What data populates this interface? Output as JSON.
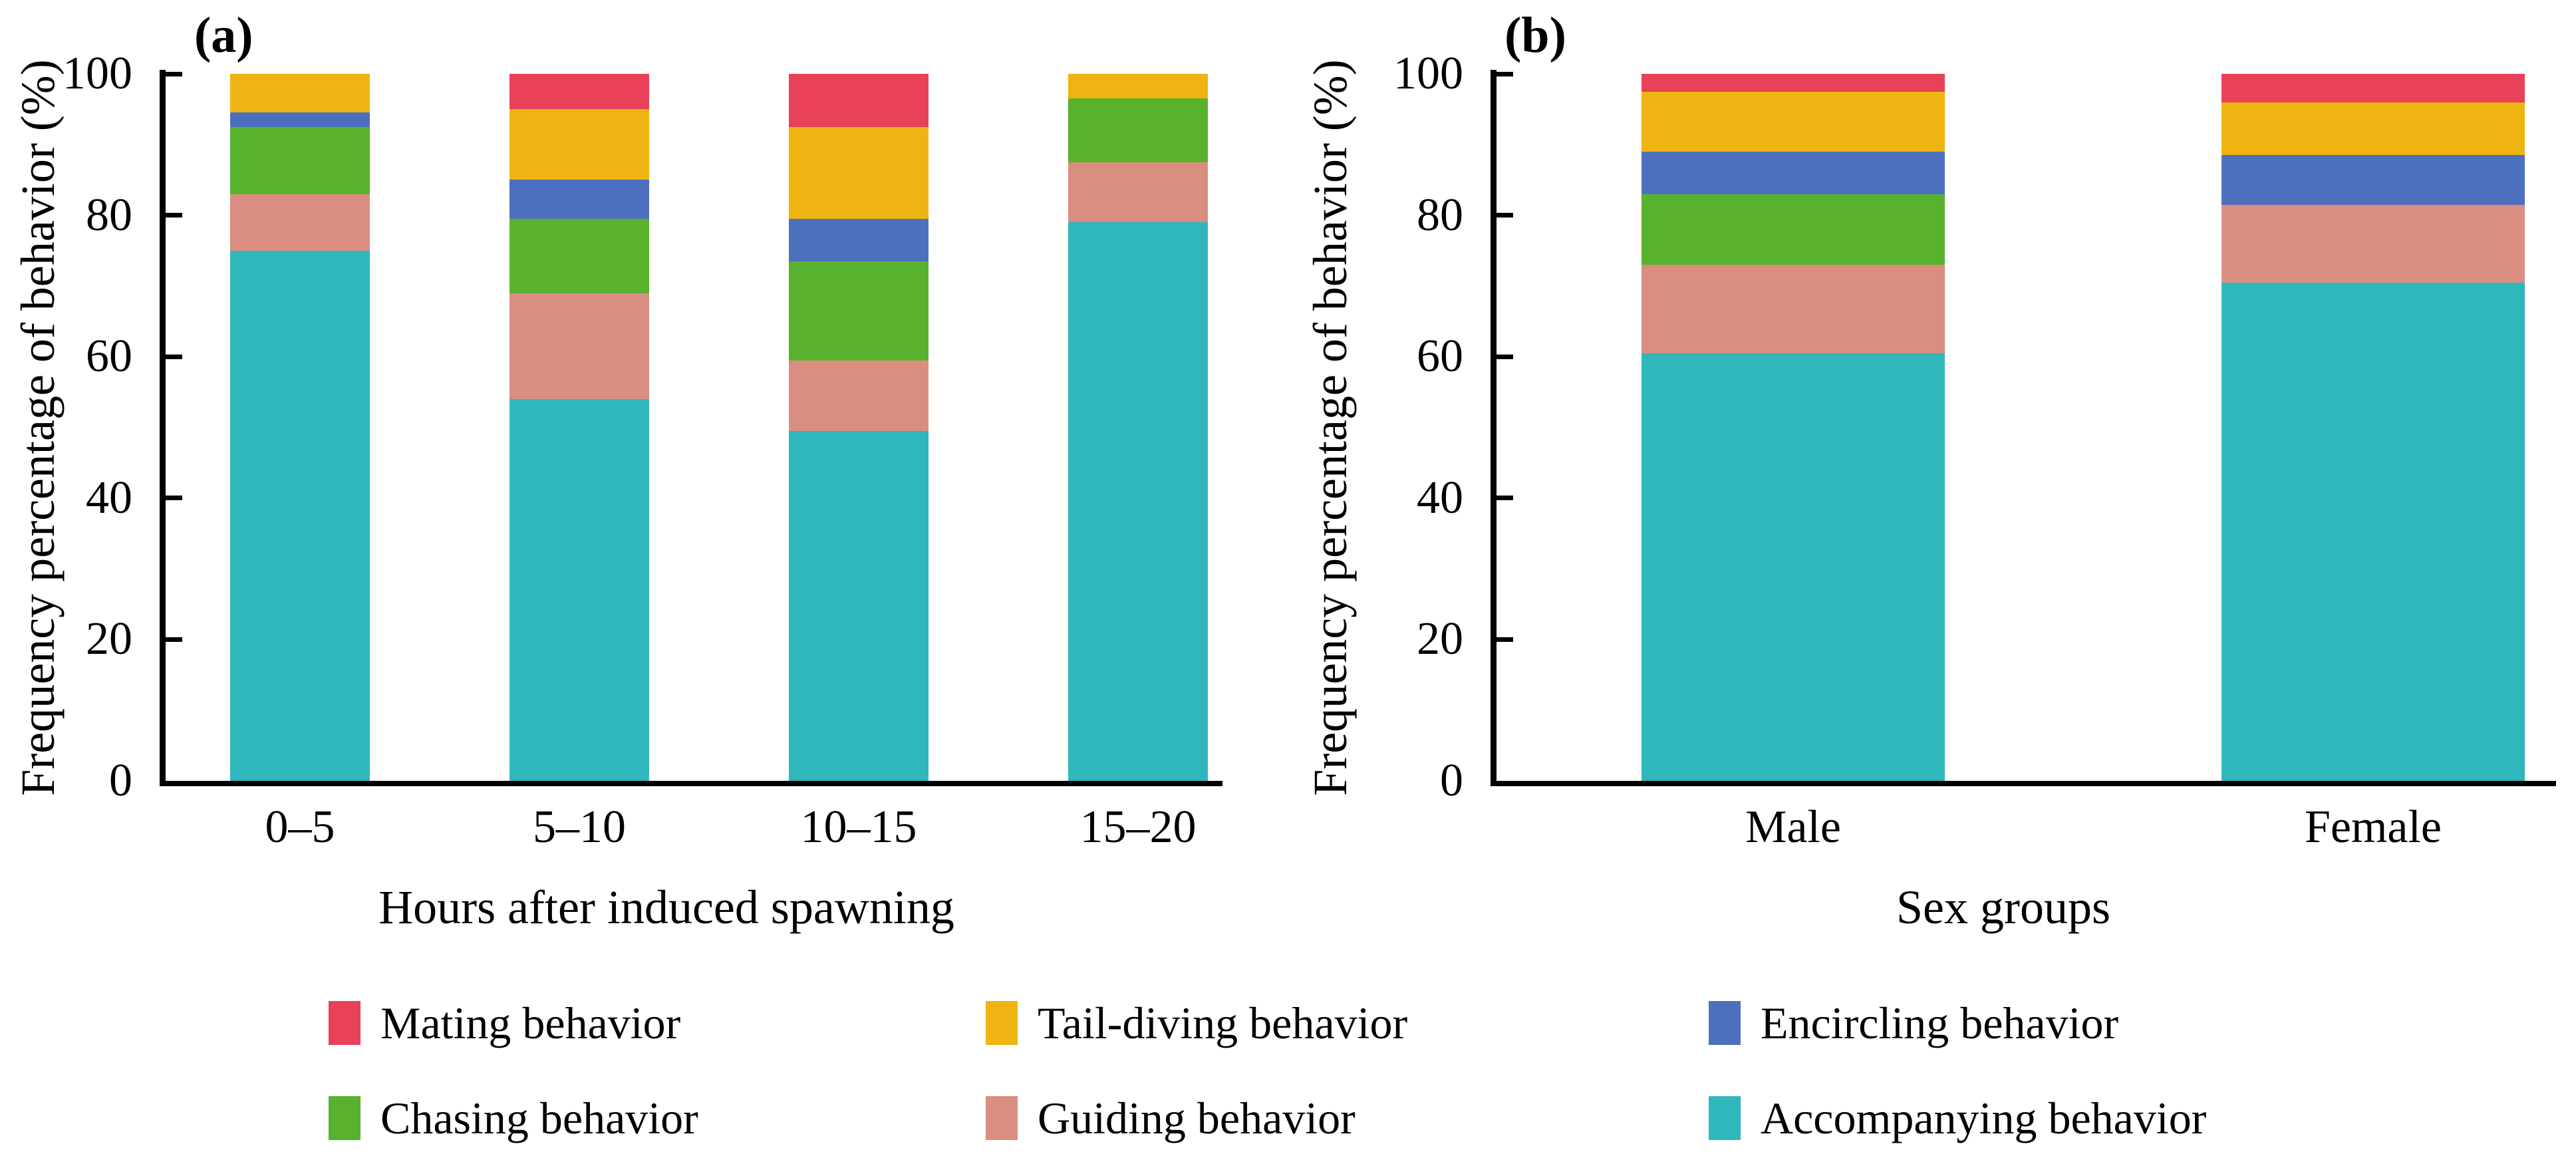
{
  "figure": {
    "background": "#ffffff",
    "text_color": "#000000"
  },
  "colors": {
    "mating": "#E84159",
    "tail_diving": "#EFB411",
    "encircling": "#4D70BE",
    "chasing": "#58B22D",
    "guiding": "#D98E80",
    "accompanying": "#2FB7BC"
  },
  "chart_data": [
    {
      "type": "bar",
      "stacked": true,
      "stack_order": "bottom_to_top",
      "title": "(a)",
      "xlabel": "Hours after induced spawning",
      "ylabel": "Frequency percentage of behavior (%)",
      "ylim": [
        0,
        100
      ],
      "yticks": [
        0,
        20,
        40,
        60,
        80,
        100
      ],
      "grid": false,
      "categories": [
        "0–5",
        "5–10",
        "10–15",
        "15–20"
      ],
      "series": [
        {
          "key": "accompanying",
          "name": "Accompanying behavior",
          "values": [
            75,
            54,
            49.5,
            79
          ]
        },
        {
          "key": "guiding",
          "name": "Guiding behavior",
          "values": [
            8,
            15,
            10,
            8.5
          ]
        },
        {
          "key": "chasing",
          "name": "Chasing behavior",
          "values": [
            9.5,
            10.5,
            14,
            9
          ]
        },
        {
          "key": "encircling",
          "name": "Encircling behavior",
          "values": [
            2,
            5.5,
            6,
            0
          ]
        },
        {
          "key": "tail_diving",
          "name": "Tail-diving behavior",
          "values": [
            5.5,
            10,
            13,
            3.5
          ]
        },
        {
          "key": "mating",
          "name": "Mating behavior",
          "values": [
            0,
            5,
            7.5,
            0
          ]
        }
      ]
    },
    {
      "type": "bar",
      "stacked": true,
      "stack_order": "bottom_to_top",
      "title": "(b)",
      "xlabel": "Sex groups",
      "ylabel": "Frequency percentage of behavior (%)",
      "ylim": [
        0,
        100
      ],
      "yticks": [
        0,
        20,
        40,
        60,
        80,
        100
      ],
      "grid": false,
      "categories": [
        "Male",
        "Female"
      ],
      "series": [
        {
          "key": "accompanying",
          "name": "Accompanying behavior",
          "values": [
            60.5,
            70.5
          ]
        },
        {
          "key": "guiding",
          "name": "Guiding behavior",
          "values": [
            12.5,
            11
          ]
        },
        {
          "key": "chasing",
          "name": "Chasing behavior",
          "values": [
            10,
            0
          ]
        },
        {
          "key": "encircling",
          "name": "Encircling behavior",
          "values": [
            6,
            7
          ]
        },
        {
          "key": "tail_diving",
          "name": "Tail-diving behavior",
          "values": [
            8.5,
            7.5
          ]
        },
        {
          "key": "mating",
          "name": "Mating behavior",
          "values": [
            2.5,
            4
          ]
        }
      ]
    }
  ],
  "legend": {
    "position": "bottom",
    "rows": [
      [
        {
          "label": "Mating behavior",
          "color_key": "mating"
        },
        {
          "label": "Tail-diving behavior",
          "color_key": "tail_diving"
        },
        {
          "label": "Encircling behavior",
          "color_key": "encircling"
        }
      ],
      [
        {
          "label": "Chasing behavior",
          "color_key": "chasing"
        },
        {
          "label": "Guiding behavior",
          "color_key": "guiding"
        },
        {
          "label": "Accompanying behavior",
          "color_key": "accompanying"
        }
      ]
    ]
  }
}
